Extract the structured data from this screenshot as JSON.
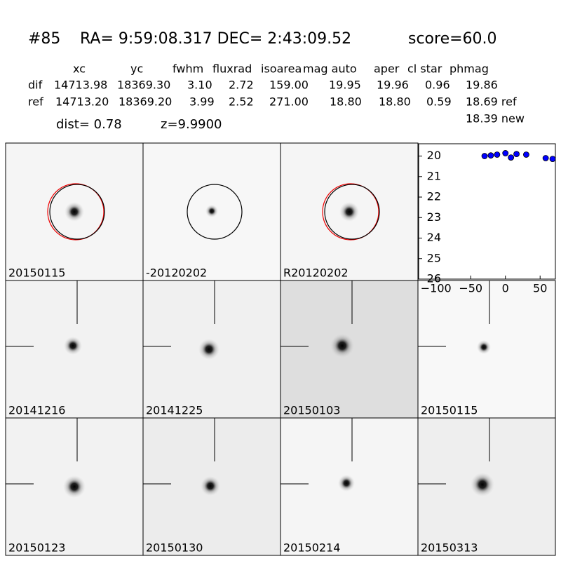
{
  "header": {
    "id": "#85",
    "coords": "RA= 9:59:08.317 DEC= 2:43:09.52",
    "score": "score=60.0"
  },
  "table": {
    "columns": [
      "xc",
      "yc",
      "fwhm",
      "fluxrad",
      "isoarea",
      "mag auto",
      "aper",
      "cl star",
      "phmag"
    ],
    "rows": [
      [
        "dif",
        "14713.98",
        "18369.30",
        "3.10",
        "2.72",
        "159.00",
        "19.95",
        "19.96",
        "0.96",
        "19.86"
      ],
      [
        "ref",
        "14713.20",
        "18369.20",
        "3.99",
        "2.52",
        "271.00",
        "18.80",
        "18.80",
        "0.59",
        "18.69 ref"
      ]
    ],
    "new": "18.39 new"
  },
  "dist": "dist=  0.78",
  "z": "z=9.9900",
  "panels": [
    "20150115",
    "-20120202",
    "R20120202",
    "20141216",
    "20141225",
    "20150103",
    "20150115",
    "20150123",
    "20150130",
    "20150214",
    "20150313"
  ],
  "chart_data": {
    "type": "scatter",
    "x": [
      -30,
      -21,
      -12,
      0,
      8,
      16,
      30,
      58,
      68
    ],
    "series": [
      {
        "color": "#0000ff",
        "values": [
          20.0,
          19.97,
          19.93,
          19.86,
          20.07,
          19.9,
          19.93,
          20.1,
          20.14
        ]
      }
    ],
    "xlim": [
      -125,
      72
    ],
    "ylim": [
      26,
      19.4
    ],
    "xticks": [
      {
        "value": -100,
        "label": "−100"
      },
      {
        "value": -50,
        "label": "−50"
      },
      0,
      50
    ],
    "yticks": [
      20,
      21,
      22,
      23,
      24,
      25,
      26
    ]
  }
}
